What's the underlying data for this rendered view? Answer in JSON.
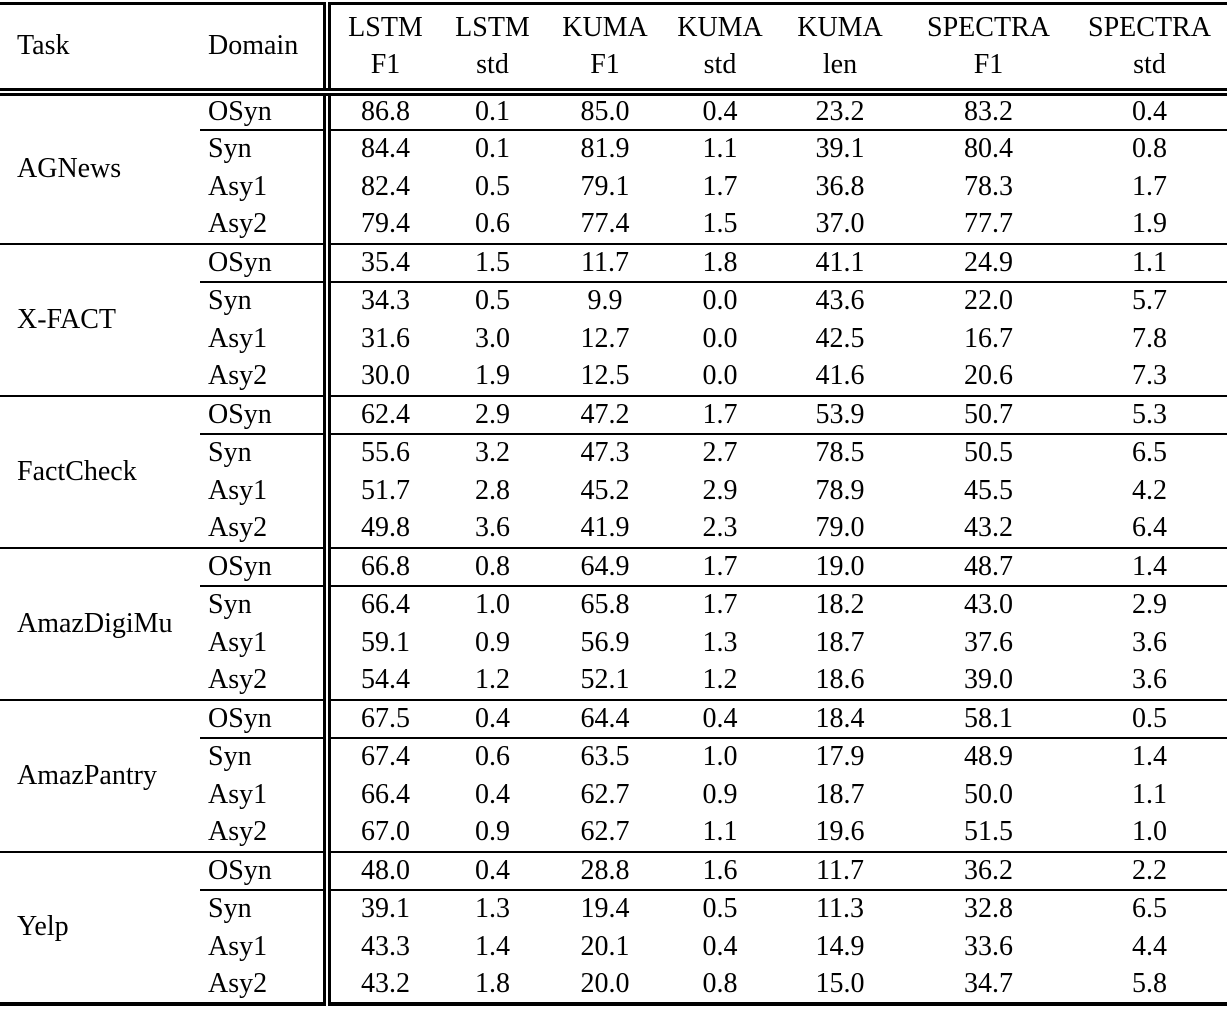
{
  "table": {
    "header": {
      "task": "Task",
      "domain": "Domain",
      "metrics": [
        {
          "model": "LSTM",
          "metric": "F1"
        },
        {
          "model": "LSTM",
          "metric": "std"
        },
        {
          "model": "KUMA",
          "metric": "F1"
        },
        {
          "model": "KUMA",
          "metric": "std"
        },
        {
          "model": "KUMA",
          "metric": "len"
        },
        {
          "model": "SPECTRA",
          "metric": "F1"
        },
        {
          "model": "SPECTRA",
          "metric": "std"
        }
      ]
    },
    "blocks": [
      {
        "task": "AGNews",
        "rows": [
          {
            "domain": "OSyn",
            "values": [
              "86.8",
              "0.1",
              "85.0",
              "0.4",
              "23.2",
              "83.2",
              "0.4"
            ]
          },
          {
            "domain": "Syn",
            "values": [
              "84.4",
              "0.1",
              "81.9",
              "1.1",
              "39.1",
              "80.4",
              "0.8"
            ]
          },
          {
            "domain": "Asy1",
            "values": [
              "82.4",
              "0.5",
              "79.1",
              "1.7",
              "36.8",
              "78.3",
              "1.7"
            ]
          },
          {
            "domain": "Asy2",
            "values": [
              "79.4",
              "0.6",
              "77.4",
              "1.5",
              "37.0",
              "77.7",
              "1.9"
            ]
          }
        ]
      },
      {
        "task": "X-FACT",
        "rows": [
          {
            "domain": "OSyn",
            "values": [
              "35.4",
              "1.5",
              "11.7",
              "1.8",
              "41.1",
              "24.9",
              "1.1"
            ]
          },
          {
            "domain": "Syn",
            "values": [
              "34.3",
              "0.5",
              "9.9",
              "0.0",
              "43.6",
              "22.0",
              "5.7"
            ]
          },
          {
            "domain": "Asy1",
            "values": [
              "31.6",
              "3.0",
              "12.7",
              "0.0",
              "42.5",
              "16.7",
              "7.8"
            ]
          },
          {
            "domain": "Asy2",
            "values": [
              "30.0",
              "1.9",
              "12.5",
              "0.0",
              "41.6",
              "20.6",
              "7.3"
            ]
          }
        ]
      },
      {
        "task": "FactCheck",
        "rows": [
          {
            "domain": "OSyn",
            "values": [
              "62.4",
              "2.9",
              "47.2",
              "1.7",
              "53.9",
              "50.7",
              "5.3"
            ]
          },
          {
            "domain": "Syn",
            "values": [
              "55.6",
              "3.2",
              "47.3",
              "2.7",
              "78.5",
              "50.5",
              "6.5"
            ]
          },
          {
            "domain": "Asy1",
            "values": [
              "51.7",
              "2.8",
              "45.2",
              "2.9",
              "78.9",
              "45.5",
              "4.2"
            ]
          },
          {
            "domain": "Asy2",
            "values": [
              "49.8",
              "3.6",
              "41.9",
              "2.3",
              "79.0",
              "43.2",
              "6.4"
            ]
          }
        ]
      },
      {
        "task": "AmazDigiMu",
        "rows": [
          {
            "domain": "OSyn",
            "values": [
              "66.8",
              "0.8",
              "64.9",
              "1.7",
              "19.0",
              "48.7",
              "1.4"
            ]
          },
          {
            "domain": "Syn",
            "values": [
              "66.4",
              "1.0",
              "65.8",
              "1.7",
              "18.2",
              "43.0",
              "2.9"
            ]
          },
          {
            "domain": "Asy1",
            "values": [
              "59.1",
              "0.9",
              "56.9",
              "1.3",
              "18.7",
              "37.6",
              "3.6"
            ]
          },
          {
            "domain": "Asy2",
            "values": [
              "54.4",
              "1.2",
              "52.1",
              "1.2",
              "18.6",
              "39.0",
              "3.6"
            ]
          }
        ]
      },
      {
        "task": "AmazPantry",
        "rows": [
          {
            "domain": "OSyn",
            "values": [
              "67.5",
              "0.4",
              "64.4",
              "0.4",
              "18.4",
              "58.1",
              "0.5"
            ]
          },
          {
            "domain": "Syn",
            "values": [
              "67.4",
              "0.6",
              "63.5",
              "1.0",
              "17.9",
              "48.9",
              "1.4"
            ]
          },
          {
            "domain": "Asy1",
            "values": [
              "66.4",
              "0.4",
              "62.7",
              "0.9",
              "18.7",
              "50.0",
              "1.1"
            ]
          },
          {
            "domain": "Asy2",
            "values": [
              "67.0",
              "0.9",
              "62.7",
              "1.1",
              "19.6",
              "51.5",
              "1.0"
            ]
          }
        ]
      },
      {
        "task": "Yelp",
        "rows": [
          {
            "domain": "OSyn",
            "values": [
              "48.0",
              "0.4",
              "28.8",
              "1.6",
              "11.7",
              "36.2",
              "2.2"
            ]
          },
          {
            "domain": "Syn",
            "values": [
              "39.1",
              "1.3",
              "19.4",
              "0.5",
              "11.3",
              "32.8",
              "6.5"
            ]
          },
          {
            "domain": "Asy1",
            "values": [
              "43.3",
              "1.4",
              "20.1",
              "0.4",
              "14.9",
              "33.6",
              "4.4"
            ]
          },
          {
            "domain": "Asy2",
            "values": [
              "43.2",
              "1.8",
              "20.0",
              "0.8",
              "15.0",
              "34.7",
              "5.8"
            ]
          }
        ]
      }
    ]
  }
}
